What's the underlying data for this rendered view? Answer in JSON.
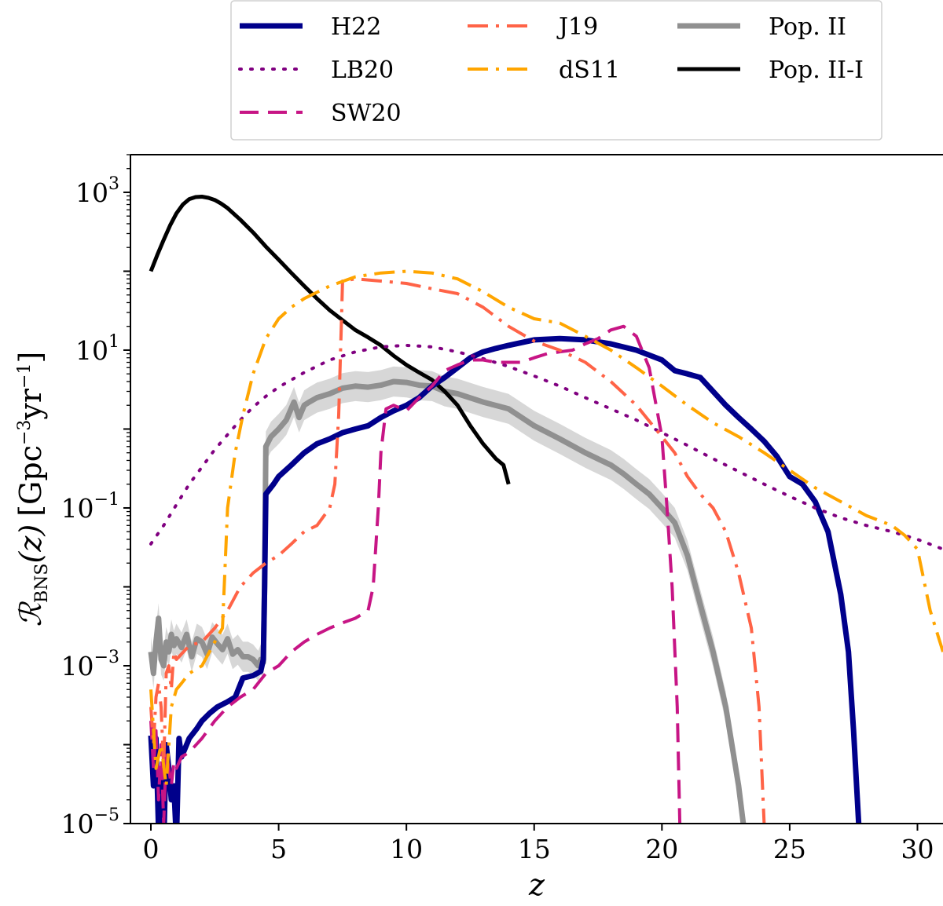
{
  "chart_data": {
    "type": "line",
    "title": "",
    "xlabel": "z",
    "ylabel": "R_BNS(z) [Gpc^-3 yr^-1]",
    "ylabel_parts": {
      "symbol": "ℛ",
      "sub": "BNS",
      "arg": "(z)",
      "unit_open": "[Gpc",
      "exp1": "−3",
      "unit_mid": "yr",
      "exp2": "−1",
      "unit_close": "]"
    },
    "xlim": [
      -0.8,
      31
    ],
    "ylim": [
      1e-05,
      3000
    ],
    "yscale": "log",
    "grid": false,
    "legend_position": "top, outside",
    "x_ticks": [
      0,
      5,
      10,
      15,
      20,
      25,
      30
    ],
    "x_tick_labels": [
      "0",
      "5",
      "10",
      "15",
      "20",
      "25",
      "30"
    ],
    "y_ticks": [
      1e-05,
      0.001,
      0.1,
      10,
      1000
    ],
    "y_tick_labels": [
      {
        "base": "10",
        "exp": "−5"
      },
      {
        "base": "10",
        "exp": "−3"
      },
      {
        "base": "10",
        "exp": "−1"
      },
      {
        "base": "10",
        "exp": "1"
      },
      {
        "base": "10",
        "exp": "3"
      }
    ],
    "series": [
      {
        "name": "Pop. II",
        "color": "#909090",
        "dash": "solid",
        "band": true,
        "x": [
          0,
          0.1,
          0.2,
          0.3,
          0.4,
          0.5,
          0.6,
          0.7,
          0.8,
          0.9,
          1.0,
          1.2,
          1.4,
          1.6,
          1.8,
          2.0,
          2.2,
          2.4,
          2.6,
          2.8,
          3.0,
          3.2,
          3.4,
          3.6,
          3.8,
          4.0,
          4.2,
          4.3,
          4.4,
          4.45,
          4.5,
          4.7,
          5.0,
          5.3,
          5.6,
          5.8,
          6.0,
          6.2,
          6.5,
          7.0,
          7.5,
          8.0,
          8.5,
          9.0,
          9.5,
          10.0,
          10.5,
          11.0,
          11.5,
          12.0,
          13.0,
          14.0,
          15.0,
          16.0,
          17.0,
          18.0,
          18.5,
          19.0,
          19.5,
          20.0,
          20.5,
          21.0,
          21.5,
          22.0,
          22.5,
          23.0,
          23.3
        ],
        "y": [
          0.0015,
          0.0008,
          0.002,
          0.004,
          0.0012,
          0.001,
          0.002,
          0.0015,
          0.0025,
          0.0018,
          0.0022,
          0.0017,
          0.0025,
          0.0013,
          0.0022,
          0.002,
          0.0014,
          0.0023,
          0.0019,
          0.0016,
          0.0022,
          0.0014,
          0.0016,
          0.0013,
          0.0013,
          0.0012,
          0.001,
          0.0012,
          0.0011,
          0.01,
          0.6,
          0.8,
          1.0,
          1.3,
          2.2,
          1.4,
          2.0,
          2.2,
          2.5,
          2.8,
          3.3,
          3.5,
          3.4,
          3.6,
          4.0,
          3.9,
          3.6,
          3.5,
          3.0,
          2.8,
          2.2,
          1.8,
          1.1,
          0.75,
          0.5,
          0.35,
          0.27,
          0.2,
          0.15,
          0.1,
          0.065,
          0.025,
          0.006,
          0.0015,
          0.0003,
          3e-05,
          5e-06
        ]
      },
      {
        "name": "Pop. II-I",
        "color": "#000000",
        "dash": "solid",
        "x": [
          0,
          0.25,
          0.5,
          0.75,
          1.0,
          1.25,
          1.5,
          1.75,
          2.0,
          2.25,
          2.5,
          2.75,
          3.0,
          3.5,
          4.0,
          4.5,
          5.0,
          5.5,
          6.0,
          6.5,
          7.0,
          7.5,
          8.0,
          8.5,
          9.0,
          9.5,
          10.0,
          10.5,
          11.0,
          11.5,
          12.0,
          12.5,
          13.0,
          13.5,
          13.8,
          14.0
        ],
        "y": [
          100,
          160,
          250,
          380,
          540,
          700,
          820,
          870,
          880,
          850,
          800,
          720,
          630,
          450,
          310,
          205,
          140,
          95,
          65,
          45,
          32,
          24,
          18,
          14.5,
          11.5,
          8.5,
          6.5,
          5.2,
          4.2,
          3.0,
          2.0,
          1.1,
          0.65,
          0.42,
          0.35,
          0.2
        ]
      },
      {
        "name": "H22",
        "color": "#00008b",
        "dash": "solid",
        "x": [
          0,
          0.1,
          0.2,
          0.3,
          0.4,
          0.5,
          0.6,
          0.7,
          0.8,
          0.9,
          1.0,
          1.1,
          1.2,
          1.5,
          1.8,
          2.0,
          2.3,
          2.6,
          3.0,
          3.3,
          3.6,
          4.0,
          4.3,
          4.4,
          4.45,
          4.5,
          4.8,
          5.0,
          5.5,
          6.0,
          6.5,
          7.0,
          7.5,
          8.0,
          8.5,
          9.0,
          9.5,
          10.0,
          10.5,
          11.0,
          11.5,
          12.0,
          12.5,
          13.0,
          13.5,
          14.0,
          15.0,
          16.0,
          17.0,
          18.0,
          19.0,
          20.0,
          20.5,
          21.0,
          21.5,
          22.0,
          22.5,
          23.0,
          23.5,
          24.0,
          24.5,
          25.0,
          25.5,
          26.0,
          26.5,
          27.0,
          27.3,
          27.5,
          27.7
        ],
        "y": [
          0.00013,
          3e-05,
          0.00012,
          8e-06,
          5e-05,
          5e-06,
          0.0001,
          5e-05,
          2e-05,
          3e-05,
          6e-06,
          0.00012,
          7e-05,
          0.00012,
          0.00016,
          0.0002,
          0.00025,
          0.0003,
          0.00035,
          0.0004,
          0.0007,
          0.00075,
          0.00085,
          0.0012,
          0.01,
          0.15,
          0.2,
          0.25,
          0.35,
          0.5,
          0.65,
          0.75,
          0.9,
          1.0,
          1.1,
          1.4,
          1.7,
          2.0,
          2.5,
          3.5,
          4.5,
          6.0,
          8.0,
          9.5,
          10.5,
          11.5,
          13.5,
          14.0,
          13.5,
          12.0,
          10.0,
          7.5,
          5.5,
          5.0,
          4.5,
          3.0,
          2.0,
          1.4,
          1.0,
          0.7,
          0.45,
          0.25,
          0.2,
          0.12,
          0.05,
          0.008,
          0.0015,
          0.00015,
          1e-05
        ]
      },
      {
        "name": "LB20",
        "color": "#800080",
        "dash": "dotted",
        "x": [
          0,
          0.5,
          1.0,
          1.5,
          2.0,
          2.5,
          3.0,
          3.5,
          4.0,
          4.5,
          5.0,
          6.0,
          7.0,
          8.0,
          9.0,
          10.0,
          11.0,
          12.0,
          13.0,
          14.0,
          15.0,
          16.0,
          17.0,
          18.0,
          19.0,
          20.0,
          21.0,
          22.0,
          23.0,
          24.0,
          25.0,
          26.0,
          27.0,
          28.0,
          29.0,
          30.0,
          31.0
        ],
        "y": [
          0.035,
          0.06,
          0.11,
          0.2,
          0.33,
          0.55,
          0.85,
          1.3,
          1.9,
          2.6,
          3.4,
          5.2,
          7.5,
          9.5,
          11.0,
          11.5,
          11.0,
          9.5,
          7.8,
          6.2,
          4.7,
          3.5,
          2.5,
          1.8,
          1.3,
          0.9,
          0.62,
          0.42,
          0.29,
          0.2,
          0.14,
          0.1,
          0.075,
          0.06,
          0.05,
          0.04,
          0.03
        ]
      },
      {
        "name": "SW20",
        "color": "#c71585",
        "dash": "dashed",
        "x": [
          0,
          0.1,
          0.2,
          0.3,
          0.4,
          0.5,
          0.6,
          0.7,
          0.8,
          0.9,
          1.0,
          1.2,
          1.5,
          2.0,
          2.5,
          3.0,
          3.5,
          4.0,
          4.5,
          5.0,
          5.5,
          6.0,
          6.5,
          7.0,
          7.5,
          8.0,
          8.5,
          8.7,
          8.9,
          9.0,
          9.2,
          9.5,
          10.0,
          10.5,
          11.0,
          11.5,
          12.0,
          12.5,
          13.0,
          13.5,
          14.0,
          14.5,
          15.0,
          15.5,
          16.0,
          16.5,
          17.0,
          17.5,
          18.0,
          18.5,
          19.0,
          19.5,
          20.0,
          20.2,
          20.4,
          20.6,
          20.7
        ],
        "y": [
          0.0002,
          5e-05,
          0.00015,
          2e-05,
          0.0001,
          1e-05,
          8e-05,
          5e-05,
          3e-05,
          6e-05,
          5e-05,
          7e-05,
          8e-05,
          0.00012,
          0.0002,
          0.0003,
          0.0004,
          0.0005,
          0.0008,
          0.001,
          0.0015,
          0.002,
          0.0025,
          0.003,
          0.0035,
          0.004,
          0.005,
          0.01,
          0.1,
          0.5,
          1.8,
          2.0,
          1.7,
          2.5,
          3.5,
          5.5,
          6.5,
          7.5,
          7.5,
          7.0,
          7.0,
          7.0,
          8.0,
          9.0,
          9.5,
          10.0,
          12.0,
          14.0,
          18.0,
          20.0,
          15.0,
          6.0,
          0.8,
          0.1,
          0.01,
          0.0003,
          1e-05
        ]
      },
      {
        "name": "J19",
        "color": "#ff6347",
        "dash": "dashdot",
        "x": [
          0,
          0.1,
          0.2,
          0.3,
          0.4,
          0.5,
          0.6,
          0.7,
          0.8,
          0.9,
          1.0,
          1.5,
          2.0,
          2.5,
          3.0,
          3.5,
          4.0,
          4.5,
          5.0,
          5.5,
          6.0,
          6.5,
          7.0,
          7.2,
          7.35,
          7.45,
          7.5,
          8.0,
          9.0,
          10.0,
          11.0,
          12.0,
          13.0,
          14.0,
          15.0,
          16.0,
          17.0,
          18.0,
          19.0,
          20.0,
          20.5,
          21.0,
          21.5,
          22.0,
          22.5,
          23.0,
          23.5,
          23.8,
          24.0
        ],
        "y": [
          0.0003,
          0.0001,
          0.0004,
          0.0006,
          0.0003,
          5e-05,
          0.0008,
          0.001,
          0.0005,
          0.0015,
          0.0012,
          0.0018,
          0.002,
          0.003,
          0.005,
          0.01,
          0.015,
          0.02,
          0.025,
          0.035,
          0.05,
          0.06,
          0.1,
          0.2,
          1.5,
          20.0,
          75.0,
          80.0,
          75.0,
          70.0,
          60.0,
          52.0,
          35.0,
          20.0,
          13.0,
          10.0,
          7.0,
          4.0,
          2.0,
          0.8,
          0.5,
          0.25,
          0.15,
          0.1,
          0.05,
          0.015,
          0.003,
          0.0003,
          1e-05
        ]
      },
      {
        "name": "dS11",
        "color": "#ffa500",
        "dash": "dashdot",
        "x": [
          0,
          0.2,
          0.4,
          0.6,
          0.8,
          1.0,
          1.2,
          1.5,
          2.0,
          2.5,
          2.8,
          3.0,
          3.3,
          3.6,
          4.0,
          4.5,
          5.0,
          5.5,
          6.0,
          7.0,
          8.0,
          9.0,
          10.0,
          11.0,
          12.0,
          13.0,
          14.0,
          15.0,
          16.0,
          17.0,
          18.0,
          19.0,
          20.0,
          21.0,
          22.0,
          23.0,
          24.0,
          25.0,
          26.0,
          27.0,
          28.0,
          29.0,
          29.5,
          30.0,
          30.5,
          31.0
        ],
        "y": [
          0.0005,
          5e-05,
          0.0001,
          3e-05,
          0.0003,
          0.0005,
          0.0006,
          0.0008,
          0.001,
          0.002,
          0.003,
          0.1,
          0.5,
          1.5,
          5.0,
          14.0,
          25.0,
          35.0,
          45.0,
          65.0,
          85.0,
          95.0,
          100.0,
          95.0,
          80.0,
          55.0,
          35.0,
          25.0,
          22.0,
          15.0,
          10.0,
          6.0,
          3.5,
          2.0,
          1.2,
          0.8,
          0.5,
          0.3,
          0.18,
          0.12,
          0.08,
          0.06,
          0.045,
          0.03,
          0.005,
          0.0015
        ]
      }
    ],
    "legend": [
      {
        "name": "H22",
        "color": "#00008b",
        "dash": "solid",
        "width": 7
      },
      {
        "name": "LB20",
        "color": "#800080",
        "dash": "dotted",
        "width": 4
      },
      {
        "name": "SW20",
        "color": "#c71585",
        "dash": "dashed",
        "width": 4
      },
      {
        "name": "J19",
        "color": "#ff6347",
        "dash": "dashdot",
        "width": 4
      },
      {
        "name": "dS11",
        "color": "#ffa500",
        "dash": "dashdot",
        "width": 4
      },
      {
        "name": "Pop. II",
        "color": "#909090",
        "dash": "solid",
        "width": 7
      },
      {
        "name": "Pop. II-I",
        "color": "#000000",
        "dash": "solid",
        "width": 5
      }
    ]
  }
}
